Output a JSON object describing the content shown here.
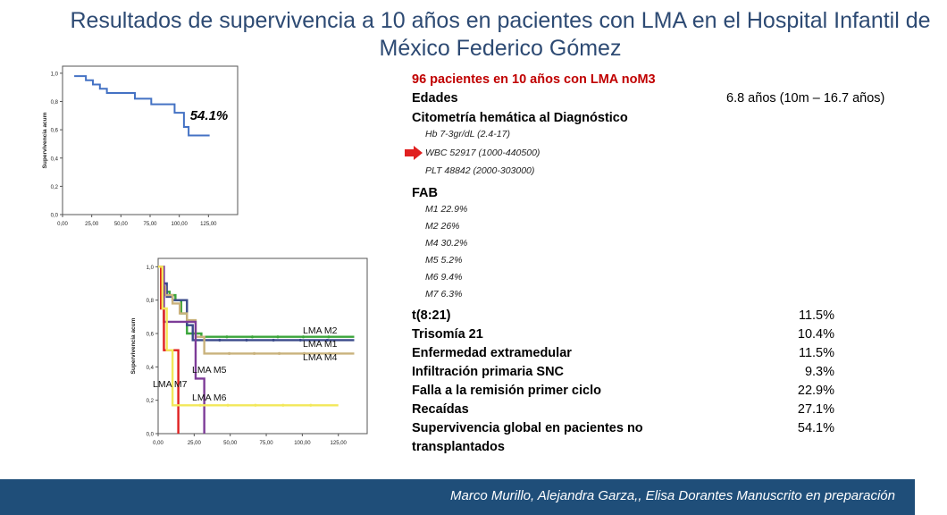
{
  "title": "Resultados de supervivencia a 10 años en pacientes con LMA en el Hospital Infantil de México Federico Gómez",
  "footer": "Marco Murillo, Alejandra Garza,, Elisa Dorantes Manuscrito en preparación",
  "info": {
    "headline": "96 pacientes en 10 años con LMA noM3",
    "edades_label": "Edades",
    "edades_value": "6.8 años (10m – 16.7 años)",
    "citometria_label": "Citometría hemática al Diagnóstico",
    "citometria_items": [
      "Hb 7-3gr/dL (2.4-17)",
      "WBC 52917 (1000-440500)",
      "PLT 48842 (2000-303000)"
    ],
    "fab_label": "FAB",
    "fab_items": [
      "M1  22.9%",
      "M2 26%",
      "M4 30.2%",
      "M5 5.2%",
      "M6 9.4%",
      "M7 6.3%"
    ],
    "stats": [
      {
        "label": "t(8:21)",
        "value": "11.5%"
      },
      {
        "label": "Trisomía 21",
        "value": "10.4%"
      },
      {
        "label": "Enfermedad extramedular",
        "value": "11.5%"
      },
      {
        "label": "Infiltración primaria SNC",
        "value": "9.3%"
      },
      {
        "label": "Falla a la remisión primer ciclo",
        "value": "22.9%"
      },
      {
        "label": "Recaídas",
        "value": "27.1%"
      },
      {
        "label": "Supervivencia global en pacientes no",
        "label2": "transplantados",
        "value": "54.1%"
      }
    ],
    "arrow_color": "#e02020"
  },
  "chart_data": [
    {
      "type": "line",
      "title": "",
      "xlabel": "",
      "ylabel": "Supervivencia acum",
      "xlim": [
        0,
        150
      ],
      "ylim": [
        0,
        1.05
      ],
      "xticks": [
        "0,00",
        "25,00",
        "50,00",
        "75,00",
        "100,00",
        "125,00"
      ],
      "yticks": [
        "0,0",
        "0,2",
        "0,4",
        "0,6",
        "0,8",
        "1,0"
      ],
      "annotation": "54.1%",
      "series": [
        {
          "color": "#4472c4",
          "x": [
            10,
            18,
            20,
            24,
            26,
            30,
            32,
            38,
            58,
            62,
            72,
            76,
            90,
            96,
            100,
            104,
            108,
            126
          ],
          "y": [
            0.98,
            0.98,
            0.95,
            0.95,
            0.92,
            0.92,
            0.89,
            0.86,
            0.86,
            0.82,
            0.82,
            0.78,
            0.78,
            0.72,
            0.72,
            0.62,
            0.56,
            0.56
          ]
        }
      ]
    },
    {
      "type": "line",
      "title": "",
      "xlabel": "",
      "ylabel": "Supervivencia acum",
      "xlim": [
        0,
        145
      ],
      "ylim": [
        0,
        1.05
      ],
      "xticks": [
        "0,00",
        "25,00",
        "50,00",
        "75,00",
        "100,00",
        "125,00"
      ],
      "yticks": [
        "0,0",
        "0,2",
        "0,4",
        "0,6",
        "0,8",
        "1,0"
      ],
      "series": [
        {
          "name": "LMA M2",
          "color": "#3aa53a",
          "x": [
            0,
            2,
            3,
            5,
            8,
            12,
            16,
            20,
            30,
            136
          ],
          "y": [
            1.0,
            0.92,
            0.88,
            0.85,
            0.83,
            0.8,
            0.72,
            0.6,
            0.58,
            0.58
          ]
        },
        {
          "name": "LMA M1",
          "color": "#3a4a8a",
          "x": [
            0,
            3,
            6,
            10,
            18,
            20,
            24,
            136
          ],
          "y": [
            1.0,
            0.9,
            0.82,
            0.8,
            0.8,
            0.65,
            0.56,
            0.56
          ]
        },
        {
          "name": "LMA M4",
          "color": "#c9b27c",
          "x": [
            0,
            2,
            5,
            10,
            15,
            20,
            26,
            32,
            136
          ],
          "y": [
            1.0,
            0.88,
            0.83,
            0.78,
            0.72,
            0.68,
            0.58,
            0.48,
            0.48
          ]
        },
        {
          "name": "LMA M5",
          "color": "#7d3c98",
          "x": [
            0,
            4,
            8,
            20,
            26,
            32,
            32
          ],
          "y": [
            1.0,
            0.67,
            0.67,
            0.67,
            0.33,
            0.33,
            0.0
          ]
        },
        {
          "name": "LMA M7",
          "color": "#e02020",
          "x": [
            0,
            2,
            4,
            8,
            14,
            14
          ],
          "y": [
            1.0,
            0.75,
            0.5,
            0.5,
            0.17,
            0.0
          ]
        },
        {
          "name": "LMA M6",
          "color": "#f2e85a",
          "x": [
            0,
            3,
            6,
            10,
            125
          ],
          "y": [
            1.0,
            0.75,
            0.5,
            0.17,
            0.17
          ]
        }
      ]
    }
  ]
}
